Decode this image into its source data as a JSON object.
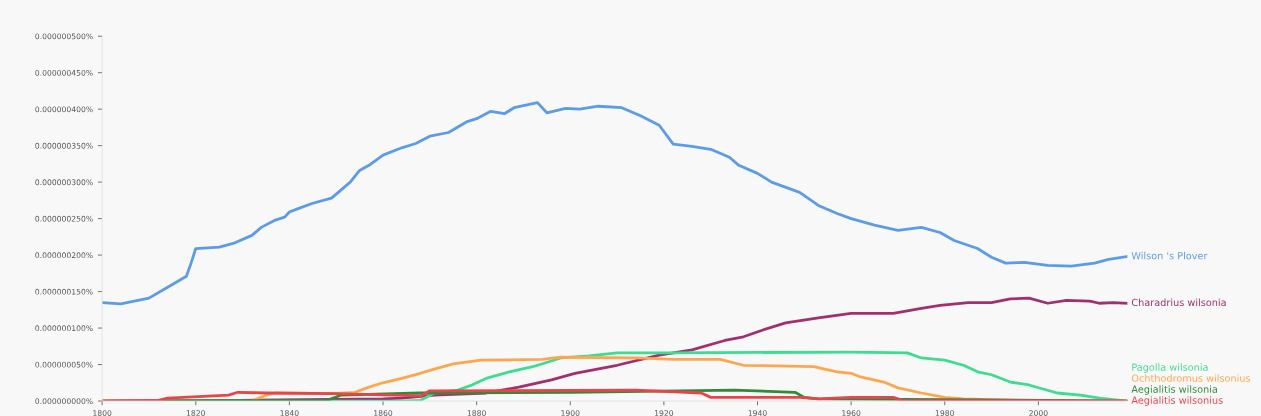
{
  "chart_data": {
    "type": "line",
    "xlim": [
      1800,
      2019
    ],
    "ylim": [
      0,
      5e-07
    ],
    "xticks": [
      1800,
      1820,
      1840,
      1860,
      1880,
      1900,
      1920,
      1940,
      1960,
      1980,
      2000
    ],
    "yticks": [
      {
        "value": 0,
        "label": "0.000000000%"
      },
      {
        "value": 5e-08,
        "label": "0.000000050%"
      },
      {
        "value": 1e-07,
        "label": "0.000000100%"
      },
      {
        "value": 1.5e-07,
        "label": "0.000000150%"
      },
      {
        "value": 2e-07,
        "label": "0.000000200%"
      },
      {
        "value": 2.5e-07,
        "label": "0.000000250%"
      },
      {
        "value": 3e-07,
        "label": "0.000000300%"
      },
      {
        "value": 3.5e-07,
        "label": "0.000000350%"
      },
      {
        "value": 4e-07,
        "label": "0.000000400%"
      },
      {
        "value": 4.5e-07,
        "label": "0.000000450%"
      },
      {
        "value": 5e-07,
        "label": "0.000000500%"
      }
    ],
    "grid": false,
    "legend": false,
    "marker": "none",
    "line_style": "solid",
    "series": [
      {
        "name": "Wilson 's Plover",
        "color": "#5b9bea",
        "x": [
          1800,
          1804,
          1810,
          1814,
          1818,
          1819,
          1820,
          1825,
          1828,
          1832,
          1834,
          1837,
          1839,
          1840,
          1842,
          1845,
          1849,
          1851,
          1853,
          1855,
          1857,
          1860,
          1864,
          1867,
          1870,
          1874,
          1878,
          1880,
          1883,
          1886,
          1888,
          1893,
          1895,
          1899,
          1902,
          1906,
          1911,
          1915,
          1919,
          1922,
          1926,
          1930,
          1934,
          1936,
          1940,
          1943,
          1949,
          1953,
          1957,
          1960,
          1965,
          1970,
          1975,
          1979,
          1982,
          1987,
          1990,
          1993,
          1997,
          2002,
          2007,
          2012,
          2015,
          2019
        ],
        "values": [
          1.35e-07,
          1.33e-07,
          1.41e-07,
          1.56e-07,
          1.71e-07,
          1.89e-07,
          2.09e-07,
          2.11e-07,
          2.16e-07,
          2.27e-07,
          2.38e-07,
          2.48e-07,
          2.52e-07,
          2.59e-07,
          2.64e-07,
          2.71e-07,
          2.78e-07,
          2.89e-07,
          3e-07,
          3.16e-07,
          3.23e-07,
          3.37e-07,
          3.47e-07,
          3.53e-07,
          3.63e-07,
          3.68e-07,
          3.83e-07,
          3.87e-07,
          3.97e-07,
          3.94e-07,
          4.02e-07,
          4.09e-07,
          3.95e-07,
          4.01e-07,
          4e-07,
          4.04e-07,
          4.02e-07,
          3.91e-07,
          3.78e-07,
          3.52e-07,
          3.49e-07,
          3.45e-07,
          3.34e-07,
          3.23e-07,
          3.12e-07,
          3e-07,
          2.86e-07,
          2.68e-07,
          2.57e-07,
          2.5e-07,
          2.41e-07,
          2.34e-07,
          2.38e-07,
          2.31e-07,
          2.2e-07,
          2.09e-07,
          1.97e-07,
          1.89e-07,
          1.9e-07,
          1.86e-07,
          1.85e-07,
          1.89e-07,
          1.94e-07,
          1.98e-07
        ]
      },
      {
        "name": "Charadrius wilsonia",
        "color": "#a3306e",
        "x": [
          1800,
          1830,
          1860,
          1864,
          1871,
          1882,
          1889,
          1896,
          1901,
          1910,
          1919,
          1926,
          1933,
          1937,
          1941,
          1946,
          1953,
          1960,
          1963,
          1969,
          1975,
          1979,
          1985,
          1990,
          1994,
          1998,
          2002,
          2006,
          2011,
          2013,
          2016,
          2019
        ],
        "values": [
          0,
          1e-09,
          3e-09,
          4e-09,
          8e-09,
          1.1e-08,
          1.9e-08,
          2.9e-08,
          3.8e-08,
          4.9e-08,
          6.3e-08,
          7e-08,
          8.3e-08,
          8.8e-08,
          9.7e-08,
          1.07e-07,
          1.14e-07,
          1.2e-07,
          1.2e-07,
          1.2e-07,
          1.27e-07,
          1.31e-07,
          1.35e-07,
          1.35e-07,
          1.4e-07,
          1.41e-07,
          1.34e-07,
          1.38e-07,
          1.37e-07,
          1.34e-07,
          1.35e-07,
          1.34e-07
        ]
      },
      {
        "name": "Pagolla wilsonia",
        "color": "#3ddc91",
        "x": [
          1800,
          1864,
          1868,
          1871,
          1876,
          1879,
          1882,
          1887,
          1892,
          1898,
          1904,
          1910,
          1921,
          1960,
          1972,
          1975,
          1980,
          1984,
          1987,
          1990,
          1994,
          1998,
          2004,
          2009,
          2013,
          2019
        ],
        "values": [
          0,
          0,
          1e-09,
          1.1e-08,
          1.5e-08,
          2.2e-08,
          3.1e-08,
          4e-08,
          4.7e-08,
          5.9e-08,
          6.2e-08,
          6.6e-08,
          6.6e-08,
          6.7e-08,
          6.6e-08,
          5.9e-08,
          5.6e-08,
          4.9e-08,
          4e-08,
          3.6e-08,
          2.6e-08,
          2.2e-08,
          1.1e-08,
          8e-09,
          4e-09,
          0
        ]
      },
      {
        "name": "Ochthodromus wilsonius",
        "color": "#ffa64d",
        "x": [
          1800,
          1832,
          1835,
          1837,
          1849,
          1854,
          1857,
          1860,
          1864,
          1868,
          1870,
          1875,
          1881,
          1894,
          1898,
          1914,
          1922,
          1932,
          1937,
          1952,
          1957,
          1960,
          1962,
          1967,
          1970,
          1975,
          1980,
          1984,
          1995,
          2019
        ],
        "values": [
          0,
          0,
          8e-09,
          1.1e-08,
          1e-08,
          1.2e-08,
          1.9e-08,
          2.5e-08,
          3.1e-08,
          3.8e-08,
          4.2e-08,
          5.1e-08,
          5.6e-08,
          5.7e-08,
          6e-08,
          5.9e-08,
          5.7e-08,
          5.7e-08,
          4.9e-08,
          4.7e-08,
          4e-08,
          3.8e-08,
          3.3e-08,
          2.6e-08,
          1.8e-08,
          1.1e-08,
          5e-09,
          3e-09,
          1e-09,
          0
        ]
      },
      {
        "name": "Aegialitis wilsonia",
        "color": "#2f8a3a",
        "x": [
          1800,
          1848,
          1851,
          1868,
          1900,
          1935,
          1948,
          1950,
          1953,
          1980,
          2019
        ],
        "values": [
          0,
          1e-09,
          8e-09,
          1.1e-08,
          1.2e-08,
          1.5e-08,
          1.2e-08,
          5e-09,
          3e-09,
          2e-09,
          0
        ]
      },
      {
        "name": "Aegialitis wilsonius",
        "color": "#e8454a",
        "x": [
          1800,
          1812,
          1814,
          1827,
          1829,
          1835,
          1850,
          1868,
          1870,
          1914,
          1928,
          1930,
          1949,
          1953,
          1960,
          1969,
          1971,
          2019
        ],
        "values": [
          0,
          1e-09,
          4e-09,
          8e-09,
          1.2e-08,
          1.1e-08,
          1e-08,
          7e-09,
          1.4e-08,
          1.5e-08,
          1.1e-08,
          5e-09,
          5e-09,
          3e-09,
          5e-09,
          5e-09,
          1e-09,
          0
        ]
      }
    ]
  }
}
